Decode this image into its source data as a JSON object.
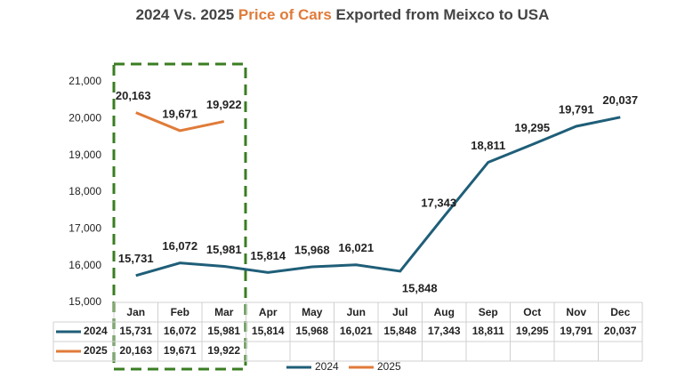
{
  "chart_data": {
    "type": "line",
    "title": [
      "2024 Vs. 2025 ",
      "Price of Cars",
      " Exported from Meixco to USA"
    ],
    "title_highlight_color": "#e07b39",
    "categories": [
      "Jan",
      "Feb",
      "Mar",
      "Apr",
      "May",
      "Jun",
      "Jul",
      "Aug",
      "Sep",
      "Oct",
      "Nov",
      "Dec"
    ],
    "series": [
      {
        "name": "2024",
        "color": "#1f5e78",
        "values": [
          15731,
          16072,
          15981,
          15814,
          15968,
          16021,
          15848,
          17343,
          18811,
          19295,
          19791,
          20037
        ],
        "value_labels": [
          "15,731",
          "16,072",
          "15,981",
          "15,814",
          "15,968",
          "16,021",
          "15,848",
          "17,343",
          "18,811",
          "19,295",
          "19,791",
          "20,037"
        ]
      },
      {
        "name": "2025",
        "color": "#e07b39",
        "values": [
          20163,
          19671,
          19922,
          null,
          null,
          null,
          null,
          null,
          null,
          null,
          null,
          null
        ],
        "value_labels": [
          "20,163",
          "19,671",
          "19,922",
          null,
          null,
          null,
          null,
          null,
          null,
          null,
          null,
          null
        ]
      }
    ],
    "ylim": [
      15000,
      21000
    ],
    "yticks": [
      {
        "value": 15000,
        "label": "15,000"
      },
      {
        "value": 16000,
        "label": "16,000"
      },
      {
        "value": 17000,
        "label": "17,000"
      },
      {
        "value": 18000,
        "label": "18,000"
      },
      {
        "value": 19000,
        "label": "19,000"
      },
      {
        "value": 20000,
        "label": "20,000"
      },
      {
        "value": 21000,
        "label": "21,000"
      }
    ],
    "grid": false,
    "legend": "bottom",
    "data_table": true
  }
}
